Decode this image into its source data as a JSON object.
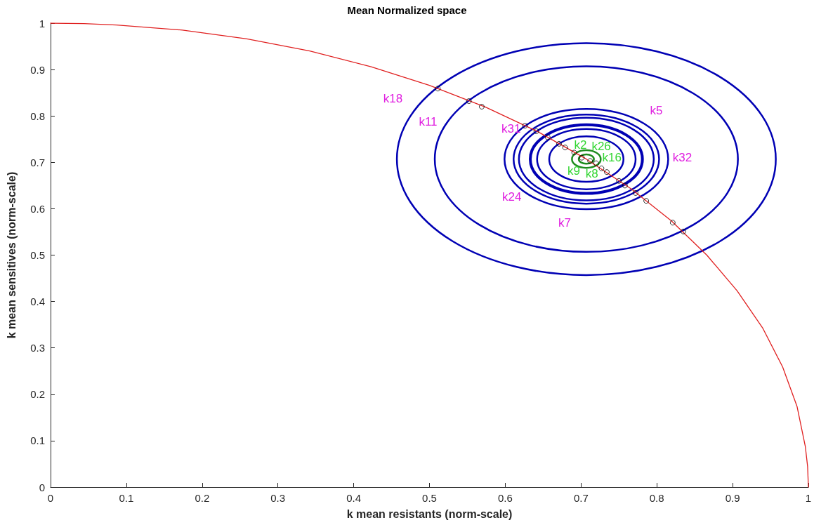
{
  "chart_data": {
    "type": "line",
    "title": "Mean Normalized space",
    "xlabel": "k mean resistants (norm-scale)",
    "ylabel": "k mean sensitives (norm-scale)",
    "xlim": [
      0,
      1
    ],
    "ylim": [
      0,
      1
    ],
    "xticks": [
      0,
      0.1,
      0.2,
      0.3,
      0.4,
      0.5,
      0.6,
      0.7,
      0.8,
      0.9,
      1
    ],
    "yticks": [
      0,
      0.1,
      0.2,
      0.3,
      0.4,
      0.5,
      0.6,
      0.7,
      0.8,
      0.9,
      1
    ],
    "grid": false,
    "series": [
      {
        "color": "#e02020",
        "x": [
          0,
          0.044,
          0.087,
          0.174,
          0.259,
          0.342,
          0.423,
          0.5,
          0.574,
          0.643,
          0.707,
          0.766,
          0.819,
          0.866,
          0.906,
          0.94,
          0.966,
          0.985,
          0.996,
          0.999,
          1
        ],
        "values": [
          1,
          0.999,
          0.996,
          0.985,
          0.966,
          0.94,
          0.906,
          0.866,
          0.819,
          0.766,
          0.707,
          0.643,
          0.574,
          0.5,
          0.423,
          0.342,
          0.259,
          0.174,
          0.087,
          0.044,
          0
        ]
      },
      {
        "type": "scatter",
        "marker": "circle",
        "color": "#000000",
        "x": [
          0.511,
          0.552,
          0.569,
          0.626,
          0.641,
          0.656,
          0.671,
          0.679,
          0.691,
          0.701,
          0.712,
          0.72,
          0.727,
          0.734,
          0.75,
          0.758,
          0.772,
          0.786,
          0.821,
          0.835
        ],
        "values": [
          0.859,
          0.832,
          0.82,
          0.779,
          0.767,
          0.754,
          0.74,
          0.732,
          0.721,
          0.71,
          0.703,
          0.698,
          0.687,
          0.679,
          0.66,
          0.65,
          0.634,
          0.617,
          0.57,
          0.551
        ]
      }
    ],
    "annotations": [
      "k18",
      "k11",
      "k31",
      "k5",
      "k32",
      "k24",
      "k7",
      "k2",
      "k26",
      "k16",
      "k9",
      "k8"
    ]
  }
}
